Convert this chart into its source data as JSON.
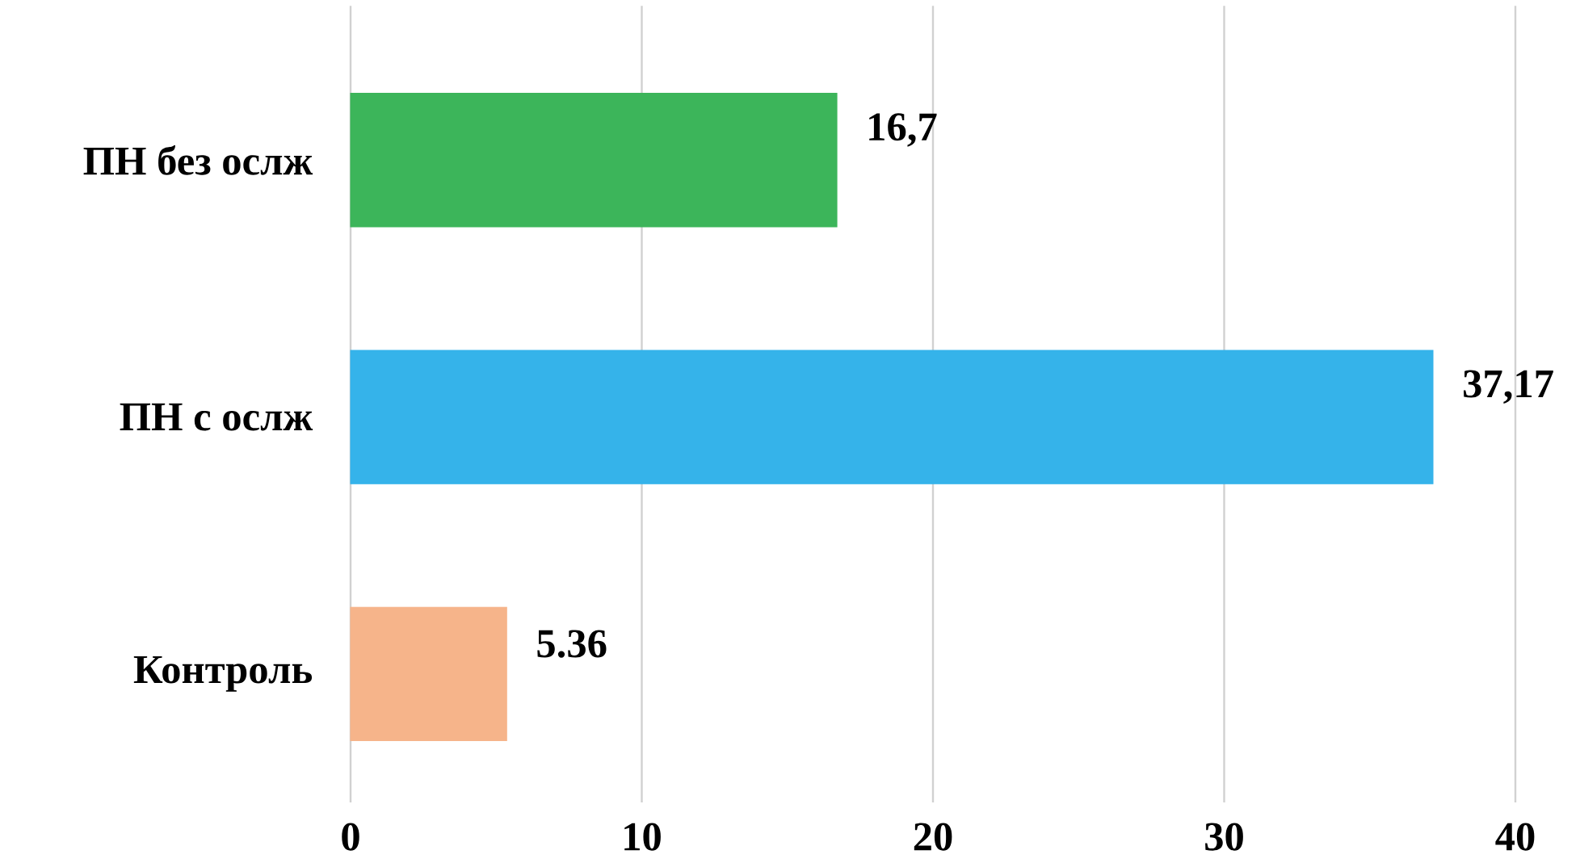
{
  "chart_data": {
    "type": "bar",
    "orientation": "horizontal",
    "categories": [
      "ПН без ослж",
      "ПН с ослж",
      "Контроль"
    ],
    "values": [
      16.7,
      37.17,
      5.36
    ],
    "colors": [
      "#3cb55a",
      "#35b3ea",
      "#f6b48a"
    ],
    "value_labels": [
      "16,7",
      "37,17",
      "5.36"
    ],
    "xlim": [
      0,
      40
    ],
    "xticks": [
      0,
      10,
      20,
      30,
      40
    ],
    "grid": "x"
  }
}
